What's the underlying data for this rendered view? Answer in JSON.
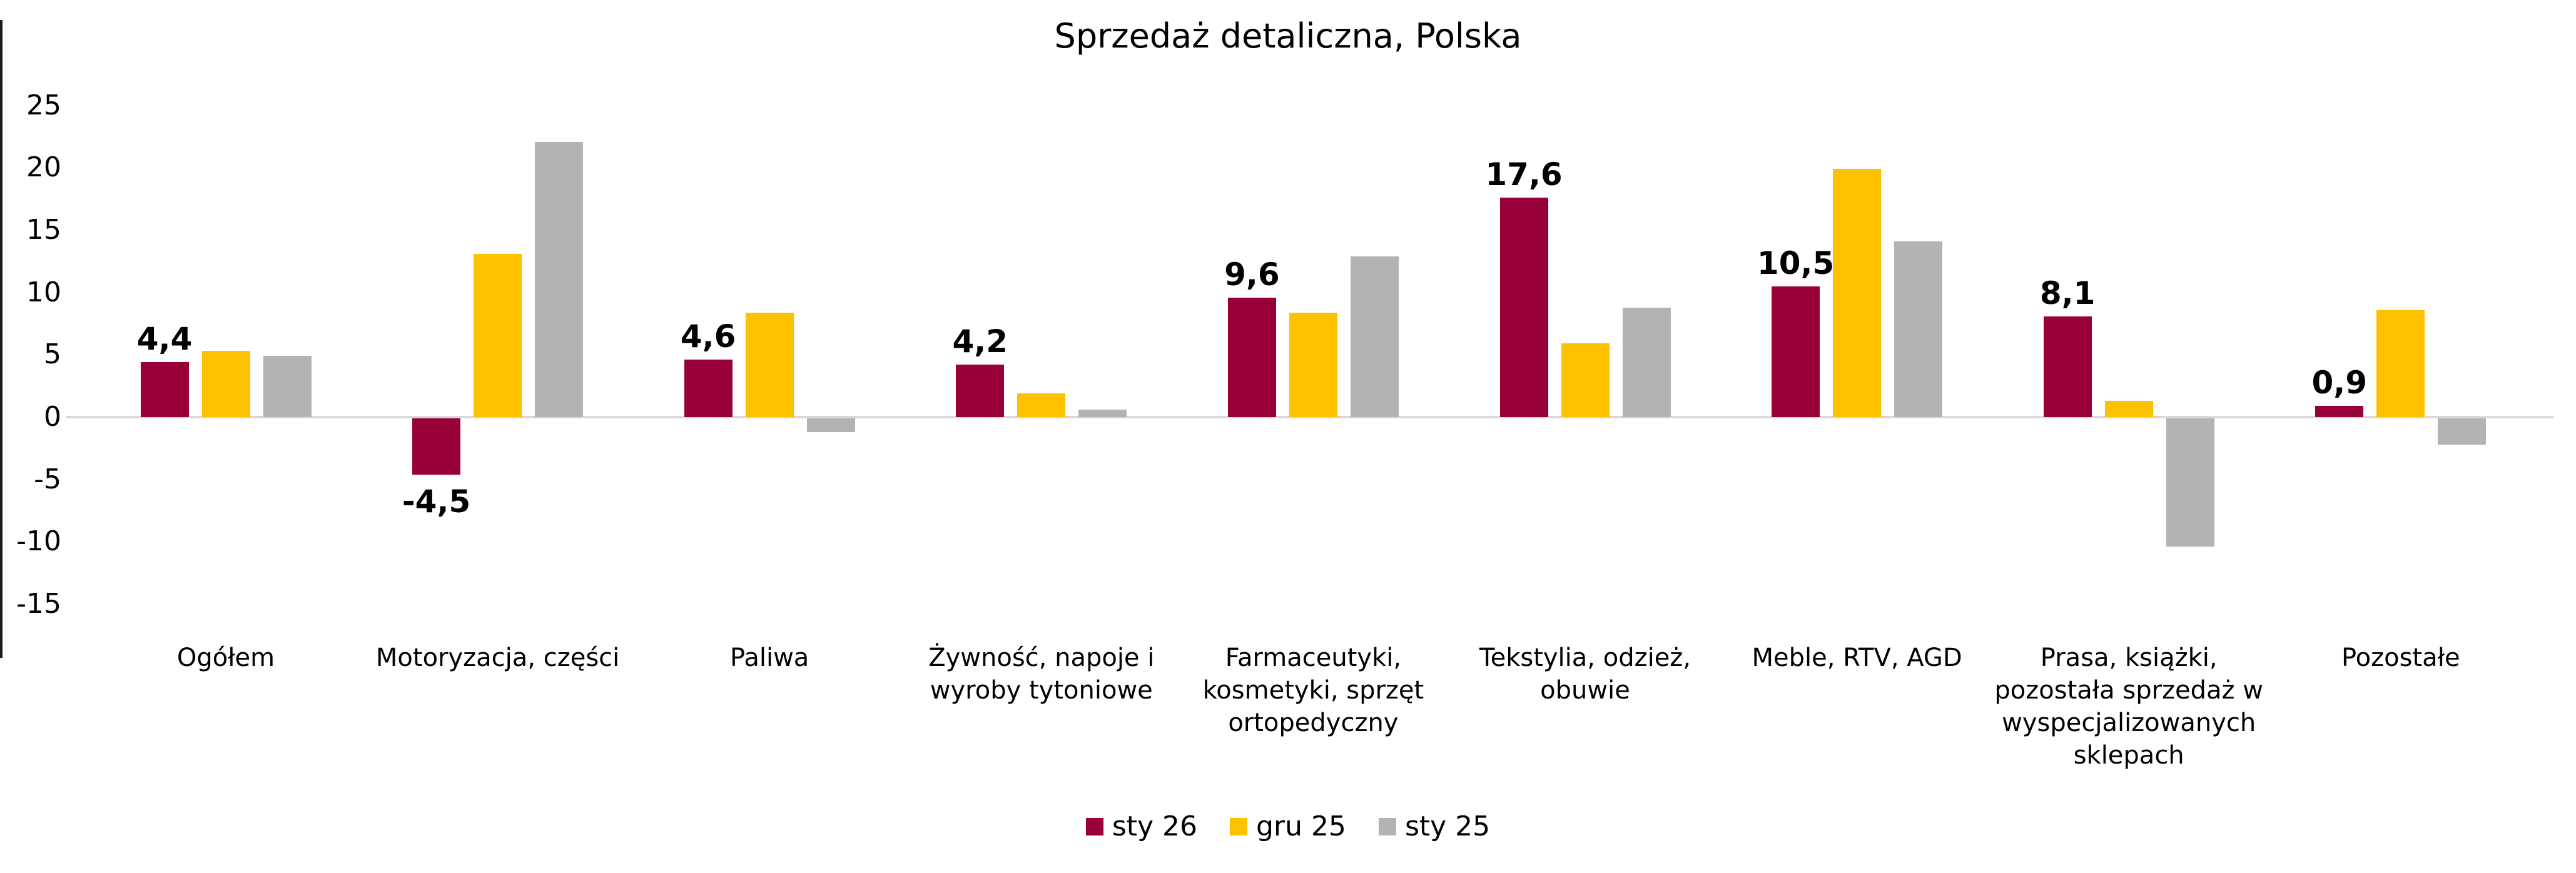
{
  "title": "Sprzedaż detaliczna, Polska",
  "colors": {
    "background": "#ffffff",
    "axis_line": "#1a1a1a",
    "zero_line": "#d9d9d9",
    "sty26": "#98003a",
    "gru25": "#ffc000",
    "sty25": "#b3b3b3"
  },
  "chart_data": {
    "type": "bar",
    "title": "Sprzedaż detaliczna, Polska",
    "xlabel": "",
    "ylabel": "",
    "ylim": [
      -15,
      25
    ],
    "yticks": [
      25,
      20,
      15,
      10,
      5,
      0,
      -5,
      -10,
      -15
    ],
    "grid": "zero-line-only",
    "legend_position": "bottom",
    "categories": [
      "Ogółem",
      "Motoryzacja, części",
      "Paliwa",
      "Żywność, napoje i wyroby tytoniowe",
      "Farmaceutyki, kosmetyki, sprzęt ortopedyczny",
      "Tekstylia, odzież, obuwie",
      "Meble, RTV, AGD",
      "Prasa, książki, pozostała sprzedaż w wyspecjalizowanych sklepach",
      "Pozostałe"
    ],
    "series": [
      {
        "name": "sty 26",
        "color": "#98003a",
        "values": [
          4.4,
          -4.5,
          4.6,
          4.2,
          9.6,
          17.6,
          10.5,
          8.1,
          0.9
        ],
        "labels": [
          "4,4",
          "-4,5",
          "4,6",
          "4,2",
          "9,6",
          "17,6",
          "10,5",
          "8,1",
          "0,9"
        ]
      },
      {
        "name": "gru 25",
        "color": "#ffc000",
        "values": [
          5.3,
          13.1,
          8.4,
          1.9,
          8.4,
          5.9,
          19.9,
          1.3,
          8.6
        ]
      },
      {
        "name": "sty 25",
        "color": "#b3b3b3",
        "values": [
          4.9,
          22.1,
          -1.1,
          0.6,
          12.9,
          8.8,
          14.1,
          -10.3,
          -2.1
        ]
      }
    ]
  }
}
